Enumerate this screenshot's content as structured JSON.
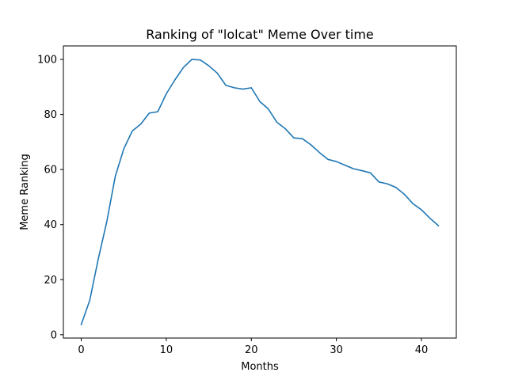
{
  "chart_data": {
    "type": "line",
    "title": "Ranking of \"lolcat\" Meme Over time",
    "xlabel": "Months",
    "ylabel": "Meme Ranking",
    "xlim": [
      -2.1,
      44.1
    ],
    "ylim": [
      -1.2,
      104.9
    ],
    "xticks": [
      0,
      10,
      20,
      30,
      40
    ],
    "yticks": [
      0,
      20,
      40,
      60,
      80,
      100
    ],
    "grid": false,
    "line_color": "#1f77b4",
    "series": [
      {
        "x": [
          0,
          1,
          2,
          3,
          4,
          5,
          6,
          7,
          8,
          9,
          10,
          11,
          12,
          13,
          14,
          15,
          16,
          17,
          18,
          19,
          20,
          21,
          22,
          23,
          24,
          25,
          26,
          27,
          28,
          29,
          30,
          31,
          32,
          33,
          34,
          35,
          36,
          37,
          38,
          39,
          40,
          41,
          42
        ],
        "values": [
          3.7,
          12.5,
          27.5,
          41.0,
          57.5,
          67.5,
          74.0,
          76.5,
          80.5,
          81.0,
          87.5,
          92.5,
          97.0,
          100.0,
          99.8,
          97.7,
          95.0,
          90.6,
          89.7,
          89.2,
          89.7,
          84.7,
          82.0,
          77.2,
          74.8,
          71.5,
          71.2,
          69.0,
          66.2,
          63.7,
          62.9,
          61.6,
          60.3,
          59.6,
          58.8,
          55.5,
          54.8,
          53.5,
          51.0,
          47.6,
          45.4,
          42.3,
          39.6
        ]
      }
    ]
  }
}
